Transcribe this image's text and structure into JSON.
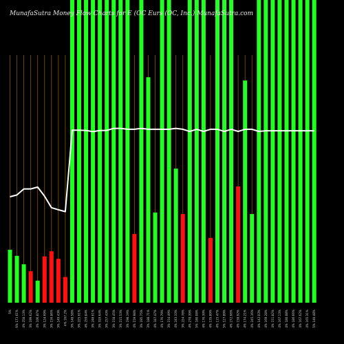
{
  "chart_data": {
    "type": "bar",
    "title": "MunafaSutra Money Flow Charts for E (OC Eurs (OC, Inc.) MunafaSutra.com",
    "colors": {
      "background": "#000000",
      "up": "#22ff22",
      "down": "#ff1111",
      "line": "#ffffff",
      "grid": "#8a5a00"
    },
    "y_range": [
      0,
      100
    ],
    "grid": true,
    "categories": [
      "5%",
      "6% 171.61%",
      "4% 258.13%",
      "3% 199.62%",
      "4% 106.87%",
      "3% 124.69%",
      "3% 156.86%",
      "3% 149.43%",
      "4% 167.2%",
      "3% 148.58%",
      "3% 225.61%",
      "4% 259.84%",
      "3% 248.61%",
      "3% 319.64%",
      "3% 257.43%",
      "3% 158.45%",
      "3% 215.53%",
      "3% 198.19%",
      "4% 159.98%",
      "3% 195.75%",
      "3% 188.71%",
      "4% 187.47%",
      "4% 176.79%",
      "3% 154.49%",
      "4% 243.33%",
      "3% 224.78%",
      "4% 278.39%",
      "5% 180.08%",
      "4% 176.39%",
      "4% 135.89%",
      "4% 115.47%",
      "5% 127.89%",
      "4% 272.66%",
      "4% 158.92%",
      "4% 174.21%",
      "4% 245.16%",
      "4% 142.03%",
      "4% 169.28%",
      "4% 151.82%",
      "4% 167.13%",
      "4% 180.08%",
      "4% 186.66%",
      "4% 167.62%",
      "4% 165.31%",
      "5% 140.48%"
    ],
    "bars": [
      {
        "value": 17.5,
        "dir": "up"
      },
      {
        "value": 15.5,
        "dir": "up"
      },
      {
        "value": 12.7,
        "dir": "up"
      },
      {
        "value": 10.4,
        "dir": "down"
      },
      {
        "value": 7.3,
        "dir": "up"
      },
      {
        "value": 15.3,
        "dir": "down"
      },
      {
        "value": 17.0,
        "dir": "down"
      },
      {
        "value": 14.5,
        "dir": "down"
      },
      {
        "value": 8.5,
        "dir": "down"
      },
      {
        "value": 100,
        "dir": "up"
      },
      {
        "value": 100,
        "dir": "up"
      },
      {
        "value": 100,
        "dir": "up"
      },
      {
        "value": 100,
        "dir": "up"
      },
      {
        "value": 100,
        "dir": "up"
      },
      {
        "value": 100,
        "dir": "up"
      },
      {
        "value": 100,
        "dir": "up"
      },
      {
        "value": 100,
        "dir": "up"
      },
      {
        "value": 100,
        "dir": "up"
      },
      {
        "value": 22.7,
        "dir": "down"
      },
      {
        "value": 100,
        "dir": "up"
      },
      {
        "value": 74.5,
        "dir": "up"
      },
      {
        "value": 29.8,
        "dir": "up"
      },
      {
        "value": 100,
        "dir": "up"
      },
      {
        "value": 100,
        "dir": "up"
      },
      {
        "value": 44.3,
        "dir": "up"
      },
      {
        "value": 29.3,
        "dir": "down"
      },
      {
        "value": 100,
        "dir": "up"
      },
      {
        "value": 100,
        "dir": "up"
      },
      {
        "value": 100,
        "dir": "up"
      },
      {
        "value": 21.4,
        "dir": "down"
      },
      {
        "value": 100,
        "dir": "up"
      },
      {
        "value": 100,
        "dir": "up"
      },
      {
        "value": 100,
        "dir": "up"
      },
      {
        "value": 38.4,
        "dir": "down"
      },
      {
        "value": 73.4,
        "dir": "up"
      },
      {
        "value": 29.3,
        "dir": "up"
      },
      {
        "value": 100,
        "dir": "up"
      },
      {
        "value": 100,
        "dir": "up"
      },
      {
        "value": 100,
        "dir": "up"
      },
      {
        "value": 100,
        "dir": "up"
      },
      {
        "value": 100,
        "dir": "up"
      },
      {
        "value": 100,
        "dir": "up"
      },
      {
        "value": 100,
        "dir": "up"
      },
      {
        "value": 100,
        "dir": "up"
      },
      {
        "value": 100,
        "dir": "up"
      }
    ],
    "line": [
      35.0,
      35.6,
      37.6,
      37.6,
      38.2,
      35.2,
      31.4,
      30.7,
      30.1,
      57.0,
      57.0,
      56.9,
      56.5,
      56.9,
      56.9,
      57.6,
      57.6,
      57.3,
      57.3,
      57.6,
      57.3,
      57.3,
      57.3,
      57.3,
      57.6,
      57.3,
      56.6,
      57.3,
      56.6,
      57.3,
      57.3,
      56.6,
      57.3,
      56.6,
      57.3,
      57.3,
      56.6,
      56.8,
      56.8,
      56.8,
      56.8,
      56.8,
      56.8,
      56.8,
      56.8
    ]
  }
}
